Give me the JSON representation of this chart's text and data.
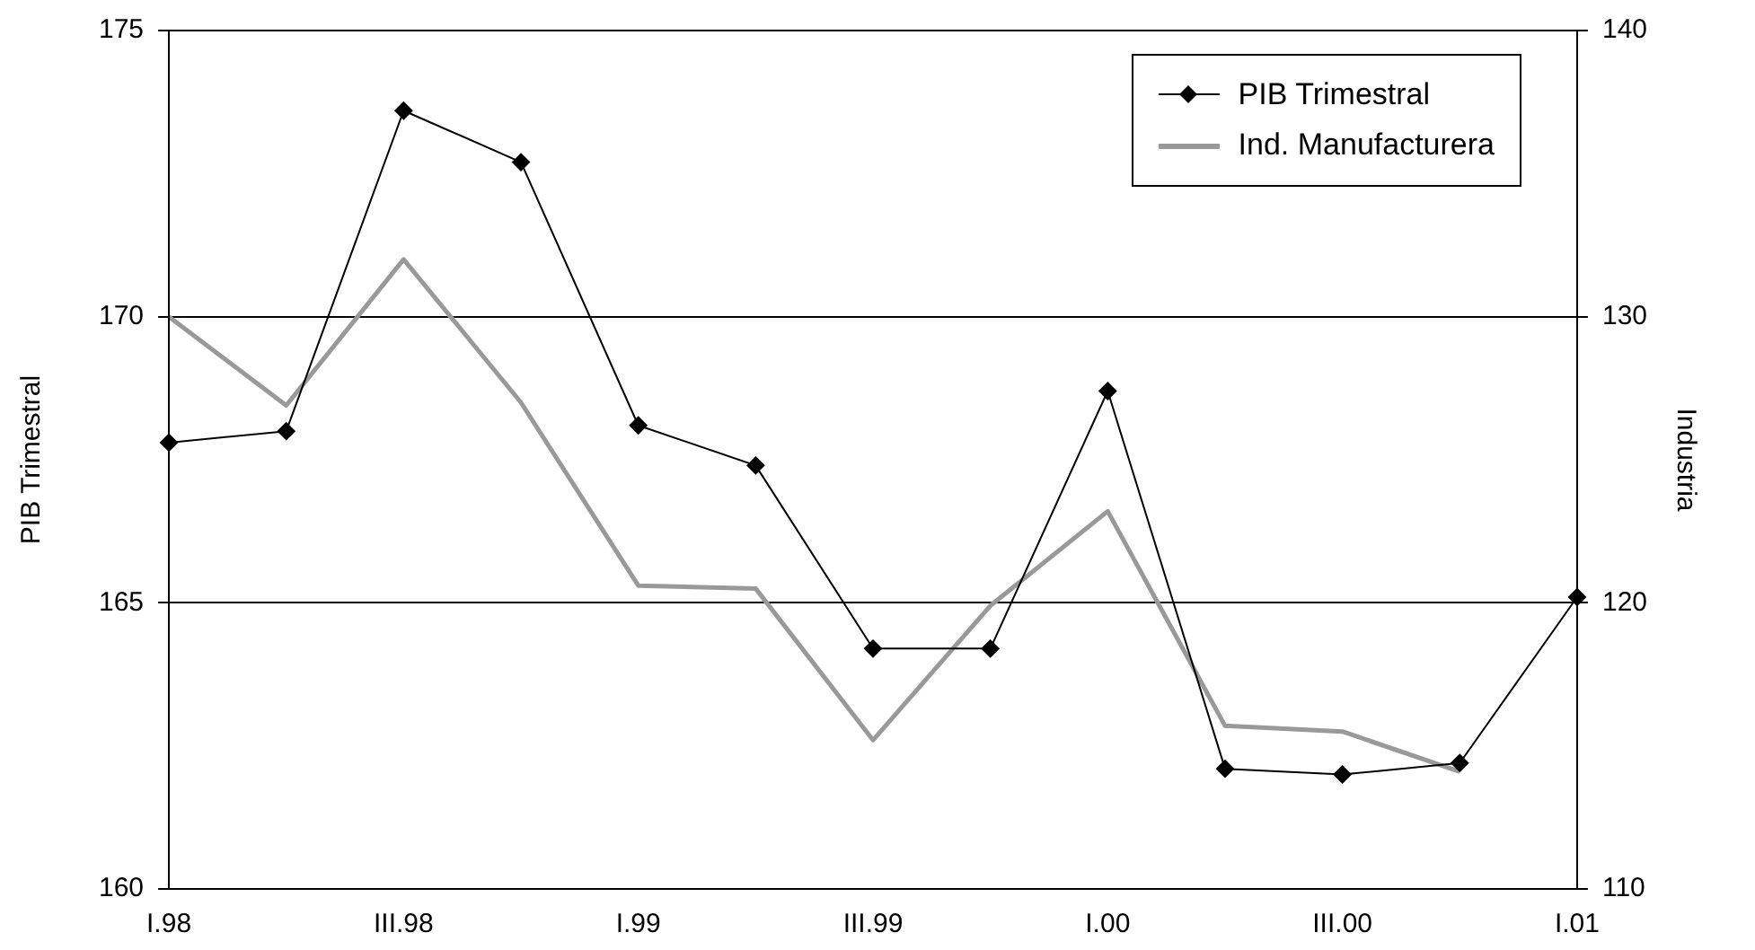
{
  "chart_data": {
    "type": "line",
    "ylabel": "PIB Trimestral",
    "y2label": "Industria",
    "categories": [
      "I.98",
      null,
      "III.98",
      null,
      "I.99",
      null,
      "III.99",
      null,
      "I.00",
      null,
      "III.00",
      null,
      "I.01"
    ],
    "series": [
      {
        "name": "PIB Trimestral",
        "color": "#000000",
        "marker": "diamond",
        "values": [
          167.8,
          168.0,
          173.6,
          172.7,
          168.1,
          167.4,
          164.2,
          164.2,
          168.7,
          162.1,
          162.0,
          162.2,
          165.1
        ]
      },
      {
        "name": "Ind. Manufacturera",
        "color": "#999999",
        "marker": "none",
        "axis": "y2",
        "values": [
          130.0,
          126.9,
          132.0,
          127.0,
          120.6,
          120.5,
          115.2,
          119.9,
          123.2,
          115.7,
          115.5,
          114.1,
          null
        ]
      }
    ],
    "ylim": [
      160,
      175
    ],
    "yticks": [
      160,
      165,
      170,
      175
    ],
    "y2lim": [
      110,
      140
    ],
    "y2ticks": [
      110,
      120,
      130,
      140
    ],
    "grid": "y",
    "legend": "top right"
  }
}
